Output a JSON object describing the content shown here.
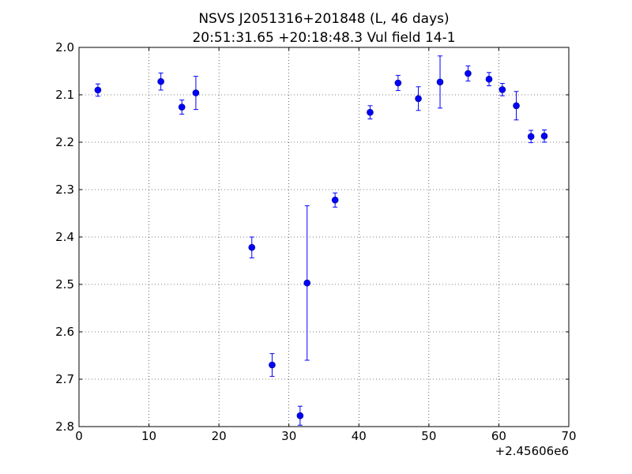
{
  "chart_data": {
    "type": "scatter",
    "title": "NSVS J2051316+201848 (L, 46 days)",
    "subtitle": "20:51:31.65 +20:18:48.3 Vul field 14-1",
    "xlabel": "",
    "ylabel": "",
    "x_offset_label": "+2.45606e6",
    "xlim": [
      0,
      70
    ],
    "ylim": [
      2.0,
      2.8
    ],
    "y_inverted": true,
    "grid": true,
    "marker_color": "#0000ff",
    "x_ticks": [
      "0",
      "10",
      "20",
      "30",
      "40",
      "50",
      "60",
      "70"
    ],
    "y_ticks": [
      "2.0",
      "2.1",
      "2.2",
      "2.3",
      "2.4",
      "2.5",
      "2.6",
      "2.7",
      "2.8"
    ],
    "series": [
      {
        "points": [
          {
            "x": 2.7,
            "y": 2.09,
            "err": 0.013
          },
          {
            "x": 11.7,
            "y": 2.072,
            "err": 0.018
          },
          {
            "x": 14.7,
            "y": 2.126,
            "err": 0.015
          },
          {
            "x": 16.7,
            "y": 2.096,
            "err": 0.035
          },
          {
            "x": 24.7,
            "y": 2.422,
            "err": 0.022
          },
          {
            "x": 27.6,
            "y": 2.67,
            "err": 0.024
          },
          {
            "x": 31.6,
            "y": 2.777,
            "err": 0.02
          },
          {
            "x": 32.6,
            "y": 2.497,
            "err": 0.163
          },
          {
            "x": 36.6,
            "y": 2.322,
            "err": 0.015
          },
          {
            "x": 41.6,
            "y": 2.137,
            "err": 0.014
          },
          {
            "x": 45.6,
            "y": 2.075,
            "err": 0.016
          },
          {
            "x": 48.5,
            "y": 2.108,
            "err": 0.025
          },
          {
            "x": 51.6,
            "y": 2.073,
            "err": 0.055
          },
          {
            "x": 55.6,
            "y": 2.055,
            "err": 0.016
          },
          {
            "x": 58.6,
            "y": 2.067,
            "err": 0.014
          },
          {
            "x": 60.5,
            "y": 2.089,
            "err": 0.013
          },
          {
            "x": 62.5,
            "y": 2.123,
            "err": 0.03
          },
          {
            "x": 64.6,
            "y": 2.188,
            "err": 0.013
          },
          {
            "x": 66.5,
            "y": 2.187,
            "err": 0.013
          }
        ]
      }
    ]
  }
}
